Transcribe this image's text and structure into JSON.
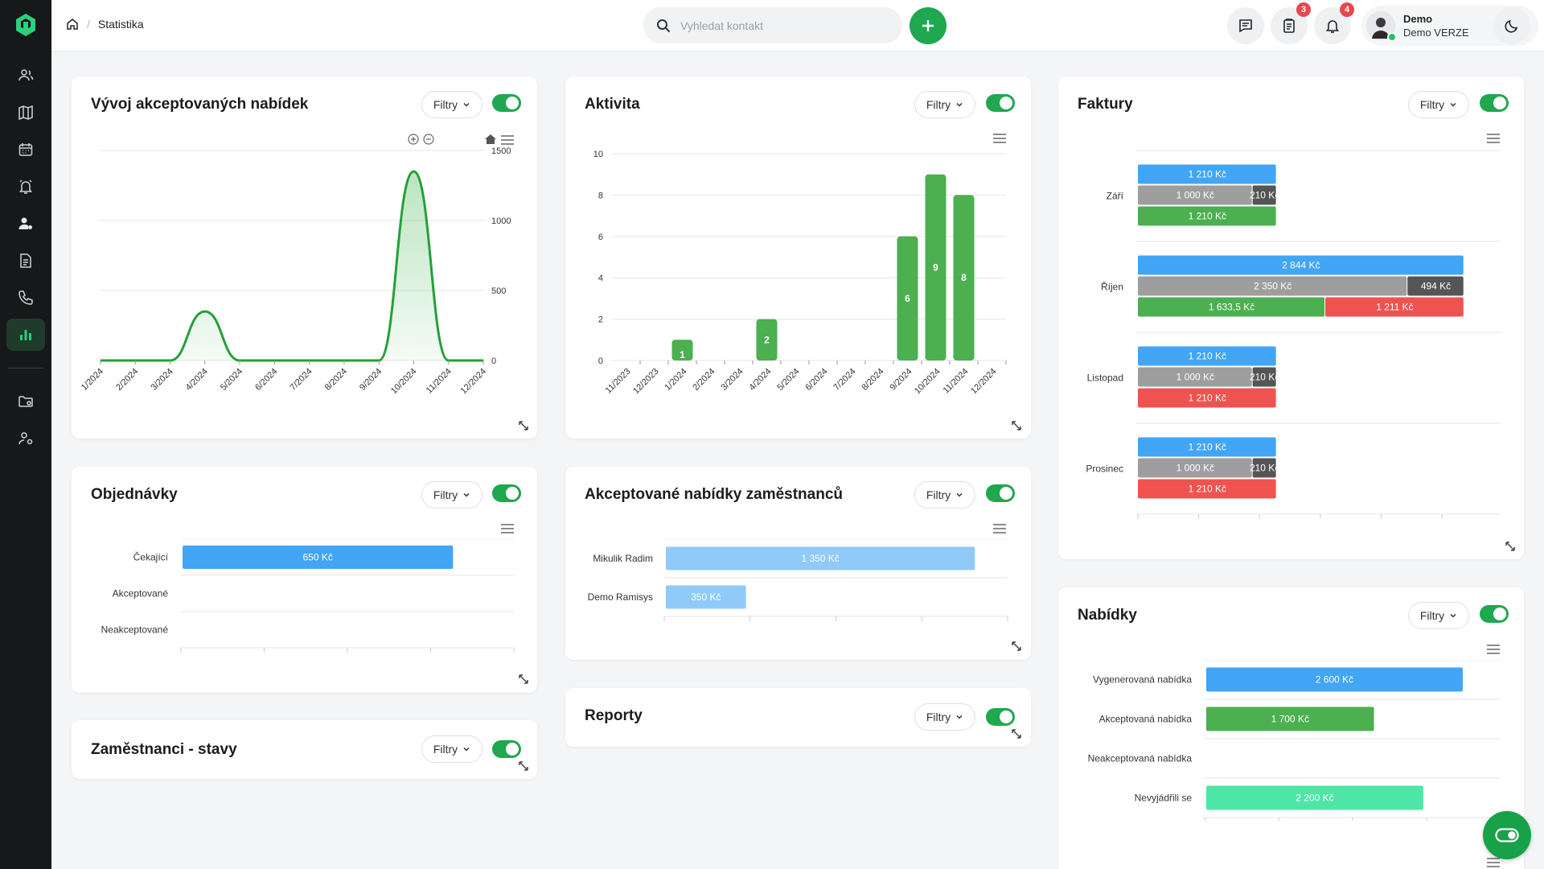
{
  "breadcrumb": {
    "current": "Statistika"
  },
  "search": {
    "placeholder": "Vyhledat kontakt"
  },
  "notifications": {
    "tasks_count": "3",
    "alerts_count": "4"
  },
  "user": {
    "name": "Demo",
    "company": "Demo VERZE"
  },
  "common": {
    "filter_label": "Filtry"
  },
  "colors": {
    "accent": "#1fa84f",
    "blue": "#42a5f5",
    "gray": "#9e9e9e",
    "dark": "#555555",
    "green": "#4caf50",
    "red": "#ef5350",
    "lightblue": "#90caf9",
    "teal": "#4ee6a6"
  },
  "cards": {
    "accepted_dev": {
      "title": "Vývoj akceptovaných nabídek"
    },
    "activity": {
      "title": "Aktivita"
    },
    "invoices": {
      "title": "Faktury"
    },
    "orders": {
      "title": "Objednávky"
    },
    "employee_accepted": {
      "title": "Akceptované nabídky zaměstnanců"
    },
    "employee_states": {
      "title": "Zaměstnanci - stavy"
    },
    "reports": {
      "title": "Reporty"
    },
    "offers": {
      "title": "Nabídky"
    }
  },
  "chart_data": [
    {
      "id": "accepted_dev",
      "type": "area",
      "x": [
        "1/2024",
        "2/2024",
        "3/2024",
        "4/2024",
        "5/2024",
        "6/2024",
        "7/2024",
        "8/2024",
        "9/2024",
        "10/2024",
        "11/2024",
        "12/2024"
      ],
      "values": [
        0,
        0,
        0,
        350,
        0,
        0,
        0,
        0,
        0,
        1350,
        0,
        0
      ],
      "y_ticks": [
        "0",
        "500",
        "1000",
        "1500"
      ],
      "ylim": [
        0,
        1500
      ],
      "y_axis_side": "right",
      "grid": true
    },
    {
      "id": "activity",
      "type": "bar",
      "categories": [
        "11/2023",
        "12/2023",
        "1/2024",
        "2/2024",
        "3/2024",
        "4/2024",
        "5/2024",
        "6/2024",
        "7/2024",
        "8/2024",
        "9/2024",
        "10/2024",
        "11/2024",
        "12/2024"
      ],
      "values": [
        0,
        0,
        1,
        0,
        0,
        2,
        0,
        0,
        0,
        0,
        6,
        9,
        8,
        0
      ],
      "data_labels": [
        "",
        "",
        "1",
        "",
        "",
        "2",
        "",
        "",
        "",
        "",
        "6",
        "9",
        "8",
        ""
      ],
      "y_ticks": [
        "0",
        "2",
        "4",
        "6",
        "8",
        "10"
      ],
      "ylim": [
        0,
        10
      ],
      "grid": true
    },
    {
      "id": "invoices",
      "type": "bar",
      "orientation": "horizontal",
      "categories": [
        "Září",
        "Říjen",
        "Listopad",
        "Prosinec"
      ],
      "rows": [
        [
          [
            {
              "value": 1210,
              "label": "1 210 Kč",
              "color": "blue"
            }
          ],
          [
            {
              "value": 1000,
              "label": "1 000 Kč",
              "color": "gray"
            },
            {
              "value": 210,
              "label": "210 Kč",
              "color": "dark"
            }
          ],
          [
            {
              "value": 1210,
              "label": "1 210 Kč",
              "color": "green"
            }
          ]
        ],
        [
          [
            {
              "value": 2844,
              "label": "2 844 Kč",
              "color": "blue"
            }
          ],
          [
            {
              "value": 2350,
              "label": "2 350 Kč",
              "color": "gray"
            },
            {
              "value": 494,
              "label": "494 Kč",
              "color": "dark"
            }
          ],
          [
            {
              "value": 1633.5,
              "label": "1 633,5 Kč",
              "color": "green"
            },
            {
              "value": 1211,
              "label": "1 211 Kč",
              "color": "red"
            }
          ]
        ],
        [
          [
            {
              "value": 1210,
              "label": "1 210 Kč",
              "color": "blue"
            }
          ],
          [
            {
              "value": 1000,
              "label": "1 000 Kč",
              "color": "gray"
            },
            {
              "value": 210,
              "label": "210 Kč",
              "color": "dark"
            }
          ],
          [
            {
              "value": 1210,
              "label": "1 210 Kč",
              "color": "red"
            }
          ]
        ],
        [
          [
            {
              "value": 1210,
              "label": "1 210 Kč",
              "color": "blue"
            }
          ],
          [
            {
              "value": 1000,
              "label": "1 000 Kč",
              "color": "gray"
            },
            {
              "value": 210,
              "label": "210 Kč",
              "color": "dark"
            }
          ],
          [
            {
              "value": 1210,
              "label": "1 210 Kč",
              "color": "red"
            }
          ]
        ]
      ],
      "xlim": [
        0,
        3000
      ]
    },
    {
      "id": "orders",
      "type": "bar",
      "orientation": "horizontal",
      "categories": [
        "Čekající",
        "Akceptované",
        "Neakceptované"
      ],
      "values": [
        650,
        0,
        0
      ],
      "data_labels": [
        "650 Kč",
        "",
        ""
      ],
      "color": "blue",
      "xlim": [
        0,
        800
      ]
    },
    {
      "id": "employee_accepted",
      "type": "bar",
      "orientation": "horizontal",
      "categories": [
        "Mikulik Radim",
        "Demo Ramisys"
      ],
      "values": [
        1350,
        350
      ],
      "data_labels": [
        "1 350 Kč",
        "350 Kč"
      ],
      "color": "lightblue",
      "xlim": [
        0,
        1500
      ]
    },
    {
      "id": "offers",
      "type": "bar",
      "orientation": "horizontal",
      "categories": [
        "Vygenerovaná nabídka",
        "Akceptovaná nabídka",
        "Neakceptovaná nabídka",
        "Nevyjádřili se"
      ],
      "values": [
        2600,
        1700,
        0,
        2200
      ],
      "data_labels": [
        "2 600 Kč",
        "1 700 Kč",
        "",
        "2 200 Kč"
      ],
      "colors": [
        "blue",
        "green",
        "green",
        "teal"
      ],
      "xlim": [
        0,
        3000
      ]
    }
  ]
}
